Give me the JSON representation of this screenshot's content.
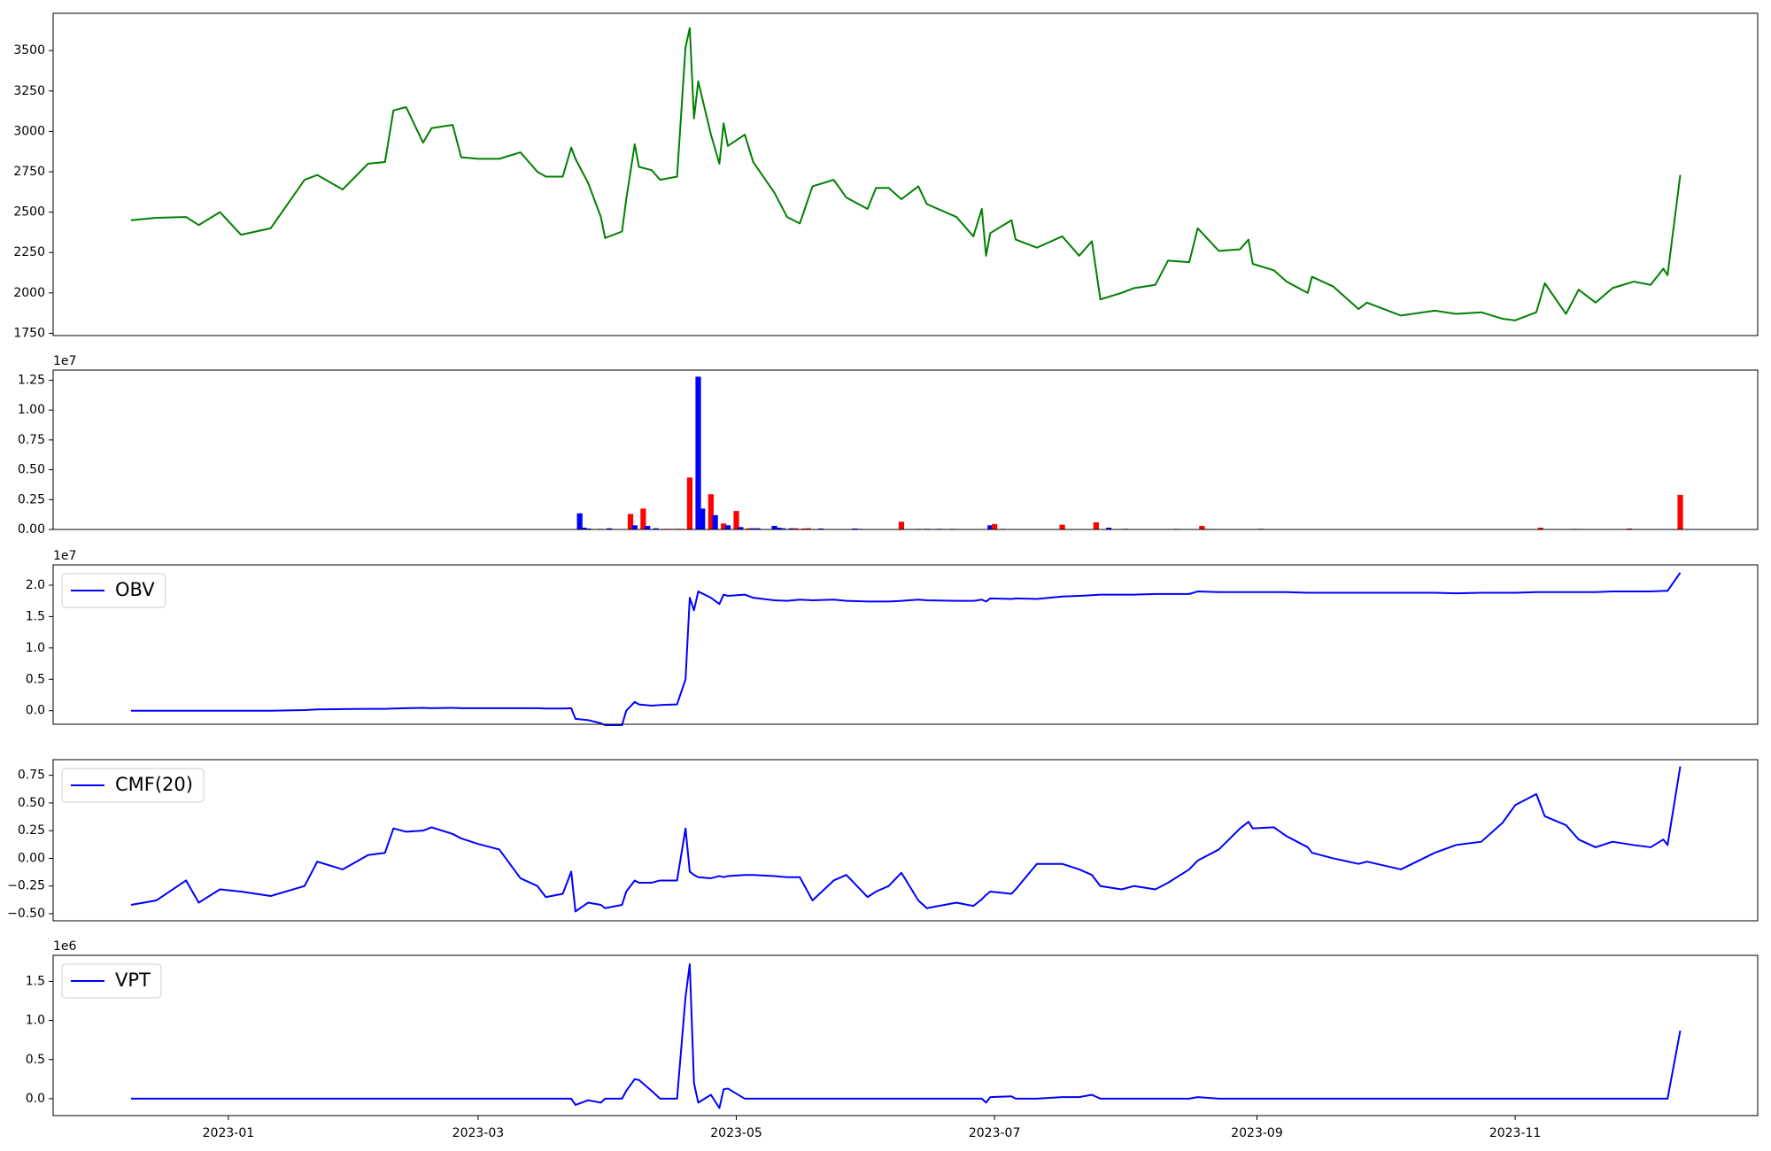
{
  "chart_data": [
    {
      "type": "line",
      "x": [
        8,
        14,
        21,
        24,
        29,
        34,
        41,
        49,
        52,
        58,
        64,
        68,
        70,
        73,
        77,
        79,
        84,
        86,
        90,
        95,
        100,
        104,
        106,
        110,
        112,
        113,
        116,
        119,
        120,
        124,
        125,
        127,
        128,
        131,
        133,
        137,
        139,
        140,
        141,
        142,
        145,
        147,
        148,
        149,
        153,
        155,
        160,
        163,
        166,
        169,
        174,
        177,
        182,
        184,
        187,
        190,
        194,
        196,
        203,
        207,
        209,
        210,
        211,
        216,
        217,
        222,
        228,
        232,
        235,
        237,
        242,
        245,
        250,
        253,
        258,
        260,
        265,
        270,
        272,
        273,
        278,
        281,
        286,
        287,
        292,
        298,
        300,
        308,
        316,
        321,
        327,
        332,
        335,
        340,
        342,
        347,
        350,
        354,
        358,
        363,
        367,
        370,
        371,
        374
      ],
      "series": [
        {
          "color": "#008000",
          "values": [
            2450,
            2465,
            2470,
            2420,
            2500,
            2360,
            2400,
            2700,
            2730,
            2640,
            2800,
            2810,
            3130,
            3150,
            2930,
            3020,
            3040,
            2840,
            2830,
            2830,
            2870,
            2750,
            2720,
            2720,
            2900,
            2830,
            2680,
            2470,
            2340,
            2380,
            2580,
            2920,
            2780,
            2760,
            2700,
            2720,
            3520,
            3640,
            3080,
            3310,
            2980,
            2800,
            3050,
            2910,
            2980,
            2810,
            2620,
            2470,
            2430,
            2660,
            2700,
            2590,
            2520,
            2650,
            2650,
            2580,
            2660,
            2550,
            2470,
            2350,
            2520,
            2230,
            2370,
            2450,
            2330,
            2280,
            2350,
            2230,
            2320,
            1960,
            2000,
            2030,
            2050,
            2200,
            2190,
            2400,
            2260,
            2270,
            2330,
            2180,
            2140,
            2070,
            2000,
            2100,
            2040,
            1900,
            1940,
            1860,
            1890,
            1870,
            1880,
            1840,
            1830,
            1880,
            2060,
            1870,
            2020,
            1940,
            2030,
            2070,
            2050,
            2150,
            2110,
            2730
          ]
        }
      ],
      "xlim": [
        -10.4,
        392.3
      ],
      "ylim": [
        1736,
        3731
      ],
      "yticks": [
        1750,
        2000,
        2250,
        2500,
        2750,
        3000,
        3250,
        3500
      ]
    },
    {
      "type": "bar",
      "x": [
        25,
        70,
        114,
        115,
        116,
        119,
        121,
        126,
        127,
        129,
        130,
        132,
        134,
        135,
        137,
        138,
        140,
        142,
        143,
        145,
        146,
        148,
        149,
        151,
        152,
        154,
        155,
        156,
        160,
        161,
        162,
        164,
        165,
        167,
        168,
        171,
        179,
        180,
        190,
        194,
        196,
        199,
        202,
        211,
        212,
        214,
        228,
        236,
        239,
        243,
        255,
        261,
        262,
        275,
        341,
        349,
        362,
        374
      ],
      "values": [
        20000,
        20000,
        1350000,
        150000,
        80000,
        50000,
        100000,
        1300000,
        350000,
        1750000,
        300000,
        100000,
        50000,
        50000,
        50000,
        50000,
        4350000,
        12800000,
        1750000,
        2950000,
        1200000,
        500000,
        350000,
        1550000,
        200000,
        100000,
        100000,
        100000,
        300000,
        150000,
        100000,
        100000,
        100000,
        80000,
        100000,
        80000,
        80000,
        50000,
        650000,
        50000,
        50000,
        50000,
        50000,
        350000,
        450000,
        50000,
        400000,
        600000,
        150000,
        50000,
        50000,
        300000,
        50000,
        50000,
        150000,
        50000,
        80000,
        2900000
      ],
      "colors": [
        "#ff0000",
        "#ff0000",
        "#0000ff",
        "#0000ff",
        "#0000ff",
        "#ff0000",
        "#0000ff",
        "#ff0000",
        "#0000ff",
        "#ff0000",
        "#0000ff",
        "#0000ff",
        "#ff0000",
        "#ff0000",
        "#ff0000",
        "#ff0000",
        "#ff0000",
        "#0000ff",
        "#0000ff",
        "#ff0000",
        "#0000ff",
        "#ff0000",
        "#0000ff",
        "#ff0000",
        "#0000ff",
        "#ff0000",
        "#0000ff",
        "#0000ff",
        "#0000ff",
        "#0000ff",
        "#0000ff",
        "#0000ff",
        "#ff0000",
        "#ff0000",
        "#ff0000",
        "#0000ff",
        "#0000ff",
        "#0000ff",
        "#ff0000",
        "#ff0000",
        "#0000ff",
        "#0000ff",
        "#0000ff",
        "#0000ff",
        "#ff0000",
        "#ff0000",
        "#ff0000",
        "#ff0000",
        "#0000ff",
        "#0000ff",
        "#ff0000",
        "#ff0000",
        "#ff0000",
        "#0000ff",
        "#ff0000",
        "#ff0000",
        "#ff0000",
        "#ff0000"
      ],
      "xlim": [
        -10.4,
        392.3
      ],
      "ylim": [
        0,
        13350000
      ],
      "yticks": [
        {
          "value": 0,
          "label": "0.00"
        },
        {
          "value": 2500000,
          "label": "0.25"
        },
        {
          "value": 5000000,
          "label": "0.50"
        },
        {
          "value": 7500000,
          "label": "0.75"
        },
        {
          "value": 10000000,
          "label": "1.00"
        },
        {
          "value": 12500000,
          "label": "1.25"
        }
      ],
      "offset_label": "1e7"
    },
    {
      "type": "line",
      "x": [
        8,
        14,
        21,
        24,
        29,
        34,
        41,
        49,
        52,
        58,
        64,
        68,
        70,
        73,
        77,
        79,
        84,
        86,
        90,
        95,
        100,
        104,
        106,
        110,
        112,
        113,
        116,
        119,
        120,
        124,
        125,
        127,
        128,
        131,
        133,
        137,
        139,
        140,
        141,
        142,
        145,
        147,
        148,
        149,
        153,
        155,
        160,
        163,
        166,
        169,
        174,
        177,
        182,
        184,
        187,
        190,
        194,
        196,
        203,
        207,
        209,
        210,
        211,
        216,
        217,
        222,
        228,
        232,
        235,
        237,
        242,
        245,
        250,
        253,
        258,
        260,
        265,
        270,
        272,
        273,
        278,
        281,
        286,
        287,
        292,
        298,
        300,
        308,
        316,
        321,
        327,
        332,
        335,
        340,
        342,
        347,
        350,
        354,
        358,
        363,
        367,
        370,
        371,
        374
      ],
      "series": [
        {
          "name": "OBV",
          "color": "#0000ff",
          "values": [
            0,
            0,
            0,
            0,
            0,
            0,
            0,
            100000,
            200000,
            250000,
            300000,
            300000,
            350000,
            400000,
            450000,
            400000,
            450000,
            400000,
            400000,
            400000,
            400000,
            400000,
            350000,
            350000,
            400000,
            -1300000,
            -1500000,
            -2000000,
            -2300000,
            -2300000,
            0,
            1400000,
            1000000,
            800000,
            900000,
            1000000,
            5000000,
            18000000,
            16000000,
            19000000,
            18000000,
            17000000,
            18500000,
            18300000,
            18500000,
            18000000,
            17600000,
            17500000,
            17700000,
            17600000,
            17700000,
            17500000,
            17400000,
            17400000,
            17400000,
            17500000,
            17700000,
            17600000,
            17500000,
            17500000,
            17700000,
            17400000,
            17900000,
            17800000,
            17900000,
            17800000,
            18200000,
            18300000,
            18400000,
            18500000,
            18500000,
            18500000,
            18600000,
            18600000,
            18600000,
            19000000,
            18900000,
            18900000,
            18900000,
            18900000,
            18900000,
            18900000,
            18800000,
            18800000,
            18800000,
            18800000,
            18800000,
            18800000,
            18800000,
            18700000,
            18800000,
            18800000,
            18800000,
            18900000,
            18900000,
            18900000,
            18900000,
            18900000,
            19000000,
            19000000,
            19000000,
            19100000,
            19100000,
            22000000
          ]
        }
      ],
      "xlim": [
        -10.4,
        392.3
      ],
      "ylim": [
        -2160000,
        23240000
      ],
      "yticks": [
        {
          "value": 0,
          "label": "0.0"
        },
        {
          "value": 5000000,
          "label": "0.5"
        },
        {
          "value": 10000000,
          "label": "1.0"
        },
        {
          "value": 15000000,
          "label": "1.5"
        },
        {
          "value": 20000000,
          "label": "2.0"
        }
      ],
      "offset_label": "1e7",
      "legend": "upper left"
    },
    {
      "type": "line",
      "x": [
        8,
        14,
        21,
        24,
        29,
        34,
        41,
        49,
        52,
        58,
        64,
        68,
        70,
        73,
        77,
        79,
        84,
        86,
        90,
        95,
        100,
        104,
        106,
        110,
        112,
        113,
        116,
        119,
        120,
        124,
        125,
        127,
        128,
        131,
        133,
        137,
        139,
        140,
        141,
        142,
        145,
        147,
        148,
        149,
        153,
        155,
        160,
        163,
        166,
        169,
        174,
        177,
        182,
        184,
        187,
        190,
        194,
        196,
        203,
        207,
        209,
        210,
        211,
        216,
        217,
        222,
        228,
        232,
        235,
        237,
        242,
        245,
        250,
        253,
        258,
        260,
        265,
        270,
        272,
        273,
        278,
        281,
        286,
        287,
        292,
        298,
        300,
        308,
        316,
        321,
        327,
        332,
        335,
        340,
        342,
        347,
        350,
        354,
        358,
        363,
        367,
        370,
        371,
        374
      ],
      "series": [
        {
          "name": "CMF(20)",
          "color": "#0000ff",
          "values": [
            -0.42,
            -0.38,
            -0.2,
            -0.4,
            -0.28,
            -0.3,
            -0.34,
            -0.25,
            -0.03,
            -0.1,
            0.03,
            0.05,
            0.27,
            0.24,
            0.25,
            0.28,
            0.22,
            0.18,
            0.13,
            0.08,
            -0.18,
            -0.25,
            -0.35,
            -0.32,
            -0.12,
            -0.48,
            -0.4,
            -0.42,
            -0.45,
            -0.42,
            -0.3,
            -0.2,
            -0.22,
            -0.22,
            -0.2,
            -0.2,
            0.27,
            -0.12,
            -0.15,
            -0.17,
            -0.18,
            -0.16,
            -0.17,
            -0.16,
            -0.15,
            -0.15,
            -0.16,
            -0.17,
            -0.17,
            -0.38,
            -0.2,
            -0.15,
            -0.35,
            -0.3,
            -0.25,
            -0.13,
            -0.38,
            -0.45,
            -0.4,
            -0.43,
            -0.37,
            -0.33,
            -0.3,
            -0.32,
            -0.28,
            -0.05,
            -0.05,
            -0.1,
            -0.15,
            -0.25,
            -0.28,
            -0.25,
            -0.28,
            -0.22,
            -0.1,
            -0.02,
            0.08,
            0.27,
            0.33,
            0.27,
            0.28,
            0.2,
            0.1,
            0.05,
            0.0,
            -0.05,
            -0.03,
            -0.1,
            0.05,
            0.12,
            0.15,
            0.32,
            0.48,
            0.58,
            0.38,
            0.3,
            0.17,
            0.1,
            0.15,
            0.12,
            0.1,
            0.17,
            0.12,
            0.83
          ]
        }
      ],
      "xlim": [
        -10.4,
        392.3
      ],
      "ylim": [
        -0.564,
        0.891
      ],
      "yticks": [
        {
          "value": -0.5,
          "label": "−0.50"
        },
        {
          "value": -0.25,
          "label": "−0.25"
        },
        {
          "value": 0,
          "label": "0.00"
        },
        {
          "value": 0.25,
          "label": "0.25"
        },
        {
          "value": 0.5,
          "label": "0.50"
        },
        {
          "value": 0.75,
          "label": "0.75"
        }
      ],
      "legend": "upper left"
    },
    {
      "type": "line",
      "x": [
        8,
        14,
        21,
        24,
        29,
        34,
        41,
        49,
        52,
        58,
        64,
        68,
        70,
        73,
        77,
        79,
        84,
        86,
        90,
        95,
        100,
        104,
        106,
        110,
        112,
        113,
        116,
        119,
        120,
        124,
        125,
        127,
        128,
        131,
        133,
        137,
        139,
        140,
        141,
        142,
        145,
        147,
        148,
        149,
        153,
        155,
        160,
        163,
        166,
        169,
        174,
        177,
        182,
        184,
        187,
        190,
        194,
        196,
        203,
        207,
        209,
        210,
        211,
        216,
        217,
        222,
        228,
        232,
        235,
        237,
        242,
        245,
        250,
        253,
        258,
        260,
        265,
        270,
        272,
        273,
        278,
        281,
        286,
        287,
        292,
        298,
        300,
        308,
        316,
        321,
        327,
        332,
        335,
        340,
        342,
        347,
        350,
        354,
        358,
        363,
        367,
        370,
        371,
        374
      ],
      "series": [
        {
          "name": "VPT",
          "color": "#0000ff",
          "values": [
            0,
            0,
            0,
            0,
            0,
            0,
            0,
            0,
            0,
            0,
            0,
            0,
            0,
            0,
            0,
            0,
            0,
            0,
            0,
            0,
            0,
            0,
            0,
            0,
            0,
            -80000,
            -20000,
            -50000,
            0,
            0,
            100000,
            250000,
            240000,
            100000,
            0,
            0,
            1300000,
            1720000,
            200000,
            -50000,
            50000,
            -120000,
            120000,
            130000,
            0,
            0,
            0,
            0,
            0,
            0,
            0,
            0,
            0,
            0,
            0,
            0,
            0,
            0,
            0,
            0,
            0,
            -50000,
            20000,
            30000,
            0,
            0,
            20000,
            20000,
            50000,
            0,
            0,
            0,
            0,
            0,
            0,
            20000,
            0,
            0,
            0,
            0,
            0,
            0,
            0,
            0,
            0,
            0,
            0,
            0,
            0,
            0,
            0,
            0,
            0,
            0,
            0,
            0,
            0,
            0,
            0,
            0,
            0,
            0,
            0,
            870000
          ]
        }
      ],
      "xlim": [
        -10.4,
        392.3
      ],
      "ylim": [
        -216000,
        1833000
      ],
      "yticks": [
        {
          "value": 0,
          "label": "0.0"
        },
        {
          "value": 500000,
          "label": "0.5"
        },
        {
          "value": 1000000,
          "label": "1.0"
        },
        {
          "value": 1500000,
          "label": "1.5"
        }
      ],
      "xticks": [
        {
          "value": 31,
          "label": "2023-01"
        },
        {
          "value": 90,
          "label": "2023-03"
        },
        {
          "value": 151,
          "label": "2023-05"
        },
        {
          "value": 212,
          "label": "2023-07"
        },
        {
          "value": 274,
          "label": "2023-09"
        },
        {
          "value": 335,
          "label": "2023-11"
        }
      ],
      "offset_label": "1e6",
      "legend": "upper left"
    }
  ]
}
